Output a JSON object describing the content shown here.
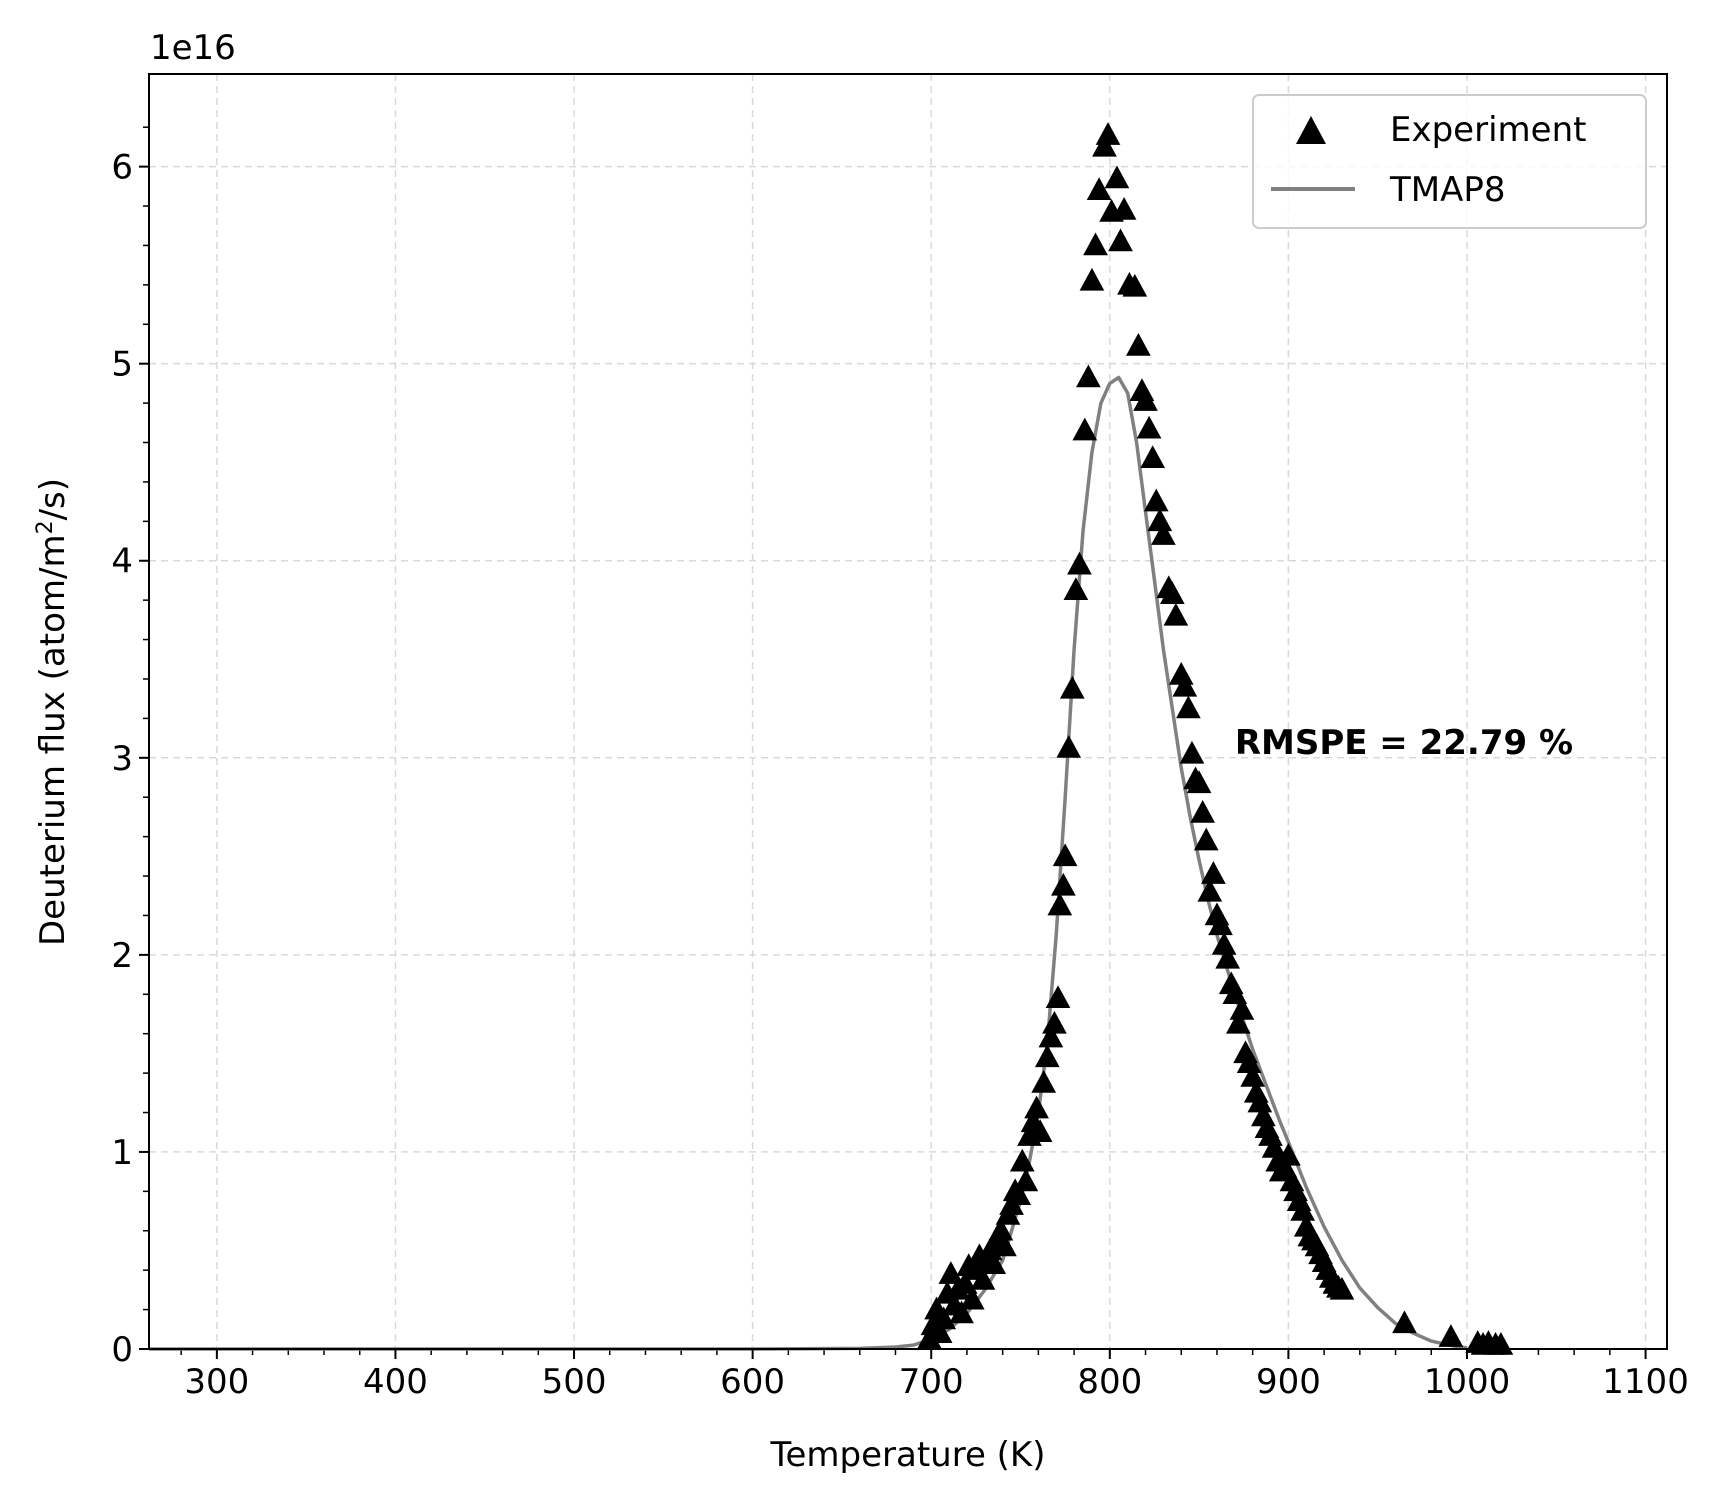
{
  "chart_data": {
    "type": "scatter",
    "xlabel": "Temperature (K)",
    "ylabel_main": "Deuterium flux (atom/m",
    "ylabel_sup": "2",
    "ylabel_tail": "/s)",
    "offset_text": "1e16",
    "xlim": [
      262,
      1112
    ],
    "ylim": [
      0,
      6.47
    ],
    "x_ticks": [
      300,
      400,
      500,
      600,
      700,
      800,
      900,
      1000,
      1100
    ],
    "x_tick_labels": [
      "300",
      "400",
      "500",
      "600",
      "700",
      "800",
      "900",
      "1000",
      "1100"
    ],
    "y_ticks": [
      0,
      1,
      2,
      3,
      4,
      5,
      6
    ],
    "y_tick_labels": [
      "0",
      "1",
      "2",
      "3",
      "4",
      "5",
      "6"
    ],
    "grid": true,
    "legend_position": "top-right",
    "annotation": "RMSPE = 22.79 %",
    "annotation_position": [
      870,
      3.02
    ],
    "series": [
      {
        "name": "Experiment",
        "kind": "scatter",
        "marker": "triangle",
        "color": "#000000",
        "points": [
          [
            699,
            0.05
          ],
          [
            701,
            0.12
          ],
          [
            703,
            0.2
          ],
          [
            705,
            0.08
          ],
          [
            707,
            0.15
          ],
          [
            709,
            0.28
          ],
          [
            711,
            0.38
          ],
          [
            713,
            0.22
          ],
          [
            715,
            0.3
          ],
          [
            717,
            0.18
          ],
          [
            719,
            0.33
          ],
          [
            721,
            0.42
          ],
          [
            723,
            0.25
          ],
          [
            725,
            0.4
          ],
          [
            727,
            0.47
          ],
          [
            729,
            0.35
          ],
          [
            731,
            0.45
          ],
          [
            733,
            0.5
          ],
          [
            735,
            0.43
          ],
          [
            737,
            0.55
          ],
          [
            739,
            0.6
          ],
          [
            741,
            0.52
          ],
          [
            743,
            0.68
          ],
          [
            745,
            0.73
          ],
          [
            747,
            0.8
          ],
          [
            749,
            0.78
          ],
          [
            751,
            0.95
          ],
          [
            753,
            0.85
          ],
          [
            755,
            1.08
          ],
          [
            757,
            1.15
          ],
          [
            759,
            1.22
          ],
          [
            761,
            1.1
          ],
          [
            763,
            1.35
          ],
          [
            765,
            1.48
          ],
          [
            767,
            1.58
          ],
          [
            769,
            1.65
          ],
          [
            771,
            1.78
          ],
          [
            772,
            2.25
          ],
          [
            774,
            2.35
          ],
          [
            775,
            2.5
          ],
          [
            777,
            3.05
          ],
          [
            779,
            3.35
          ],
          [
            781,
            3.85
          ],
          [
            783,
            3.98
          ],
          [
            786,
            4.66
          ],
          [
            788,
            4.93
          ],
          [
            790,
            5.42
          ],
          [
            792,
            5.6
          ],
          [
            794,
            5.88
          ],
          [
            797,
            6.1
          ],
          [
            799,
            6.16
          ],
          [
            801,
            5.77
          ],
          [
            804,
            5.94
          ],
          [
            806,
            5.62
          ],
          [
            808,
            5.78
          ],
          [
            811,
            5.4
          ],
          [
            814,
            5.39
          ],
          [
            816,
            5.09
          ],
          [
            818,
            4.86
          ],
          [
            820,
            4.81
          ],
          [
            822,
            4.67
          ],
          [
            824,
            4.52
          ],
          [
            826,
            4.3
          ],
          [
            828,
            4.2
          ],
          [
            830,
            4.13
          ],
          [
            833,
            3.86
          ],
          [
            835,
            3.83
          ],
          [
            837,
            3.72
          ],
          [
            840,
            3.42
          ],
          [
            842,
            3.36
          ],
          [
            844,
            3.25
          ],
          [
            846,
            3.02
          ],
          [
            848,
            2.89
          ],
          [
            850,
            2.87
          ],
          [
            852,
            2.72
          ],
          [
            854,
            2.58
          ],
          [
            856,
            2.32
          ],
          [
            858,
            2.41
          ],
          [
            860,
            2.2
          ],
          [
            862,
            2.15
          ],
          [
            864,
            2.05
          ],
          [
            866,
            1.98
          ],
          [
            868,
            1.85
          ],
          [
            870,
            1.8
          ],
          [
            872,
            1.65
          ],
          [
            874,
            1.72
          ],
          [
            876,
            1.5
          ],
          [
            878,
            1.45
          ],
          [
            880,
            1.38
          ],
          [
            882,
            1.3
          ],
          [
            884,
            1.25
          ],
          [
            886,
            1.18
          ],
          [
            888,
            1.12
          ],
          [
            890,
            1.08
          ],
          [
            892,
            1.02
          ],
          [
            894,
            0.95
          ],
          [
            896,
            0.9
          ],
          [
            898,
            0.92
          ],
          [
            900,
            0.98
          ],
          [
            902,
            0.85
          ],
          [
            904,
            0.8
          ],
          [
            906,
            0.75
          ],
          [
            908,
            0.7
          ],
          [
            910,
            0.62
          ],
          [
            912,
            0.57
          ],
          [
            914,
            0.55
          ],
          [
            916,
            0.52
          ],
          [
            918,
            0.48
          ],
          [
            920,
            0.44
          ],
          [
            922,
            0.4
          ],
          [
            924,
            0.36
          ],
          [
            926,
            0.33
          ],
          [
            928,
            0.31
          ],
          [
            930,
            0.3
          ],
          [
            965,
            0.13
          ],
          [
            991,
            0.06
          ],
          [
            1006,
            0.03
          ],
          [
            1009,
            0.02
          ],
          [
            1012,
            0.03
          ],
          [
            1016,
            0.02
          ],
          [
            1019,
            0.02
          ]
        ]
      },
      {
        "name": "TMAP8",
        "kind": "line",
        "color": "#808080",
        "points": [
          [
            262,
            0
          ],
          [
            600,
            0.0
          ],
          [
            660,
            0.003
          ],
          [
            680,
            0.01
          ],
          [
            690,
            0.02
          ],
          [
            700,
            0.05
          ],
          [
            710,
            0.1
          ],
          [
            720,
            0.18
          ],
          [
            730,
            0.3
          ],
          [
            740,
            0.45
          ],
          [
            745,
            0.6
          ],
          [
            750,
            0.75
          ],
          [
            755,
            0.95
          ],
          [
            760,
            1.2
          ],
          [
            765,
            1.55
          ],
          [
            770,
            2.1
          ],
          [
            775,
            2.8
          ],
          [
            780,
            3.55
          ],
          [
            785,
            4.15
          ],
          [
            790,
            4.55
          ],
          [
            795,
            4.8
          ],
          [
            800,
            4.9
          ],
          [
            805,
            4.93
          ],
          [
            810,
            4.85
          ],
          [
            815,
            4.6
          ],
          [
            820,
            4.25
          ],
          [
            825,
            3.9
          ],
          [
            830,
            3.55
          ],
          [
            835,
            3.25
          ],
          [
            840,
            2.95
          ],
          [
            845,
            2.7
          ],
          [
            850,
            2.48
          ],
          [
            855,
            2.28
          ],
          [
            860,
            2.1
          ],
          [
            865,
            1.95
          ],
          [
            870,
            1.8
          ],
          [
            875,
            1.66
          ],
          [
            880,
            1.52
          ],
          [
            885,
            1.4
          ],
          [
            890,
            1.28
          ],
          [
            895,
            1.16
          ],
          [
            900,
            1.05
          ],
          [
            910,
            0.82
          ],
          [
            920,
            0.62
          ],
          [
            930,
            0.45
          ],
          [
            940,
            0.31
          ],
          [
            950,
            0.21
          ],
          [
            960,
            0.13
          ],
          [
            970,
            0.08
          ],
          [
            980,
            0.04
          ],
          [
            990,
            0.02
          ],
          [
            1000,
            0.005
          ]
        ]
      }
    ]
  }
}
